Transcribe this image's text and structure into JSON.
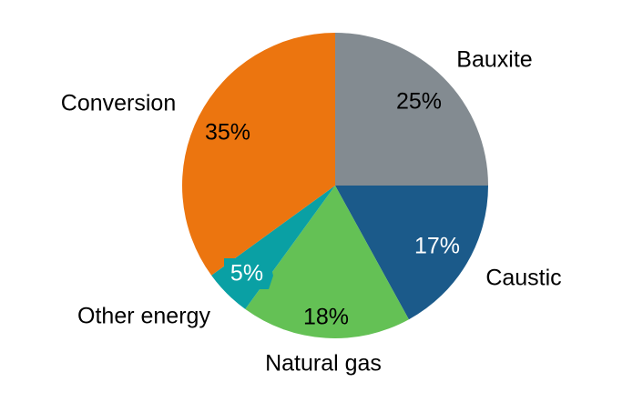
{
  "chart_data": {
    "type": "pie",
    "slices": [
      {
        "label": "Bauxite",
        "value": 25,
        "value_label": "25%",
        "color": "#838b91",
        "value_color": "#000000"
      },
      {
        "label": "Caustic",
        "value": 17,
        "value_label": "17%",
        "color": "#1b5a8a",
        "value_color": "#ffffff"
      },
      {
        "label": "Natural gas",
        "value": 18,
        "value_label": "18%",
        "color": "#64c155",
        "value_color": "#000000"
      },
      {
        "label": "Other energy",
        "value": 5,
        "value_label": "5%",
        "color": "#0aa0a4",
        "value_color": "#ffffff"
      },
      {
        "label": "Conversion",
        "value": 35,
        "value_label": "35%",
        "color": "#ec750f",
        "value_color": "#000000"
      }
    ],
    "start_angle": "12 o'clock",
    "direction": "clockwise",
    "legend": "none",
    "labels": "outside slices, values inside"
  }
}
